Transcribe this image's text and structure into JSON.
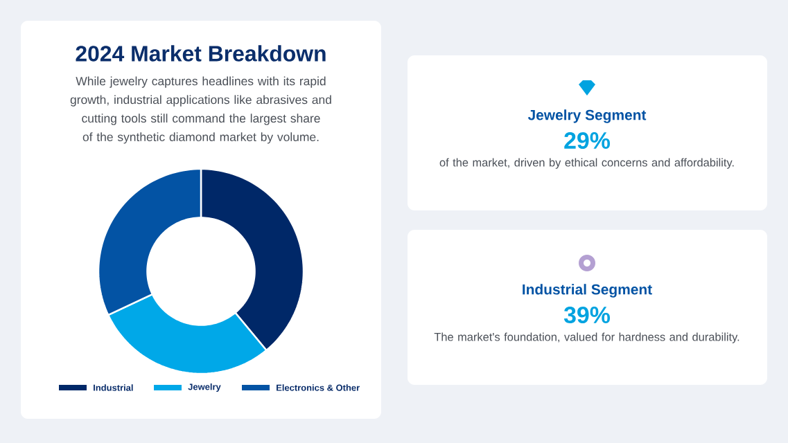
{
  "chart_data": [
    {
      "type": "donut",
      "title": "2024 Market Breakdown",
      "subtitle": "While jewelry captures headlines with its rapid growth, industrial applications like abrasives and cutting tools still command the largest share of the synthetic diamond market by volume.",
      "categories": [
        "Industrial",
        "Jewelry",
        "Electronics & Other"
      ],
      "values": [
        39,
        29,
        32
      ],
      "colors": [
        "#002868",
        "#00a8e8",
        "#0353a4"
      ],
      "legend": "bottom"
    },
    {
      "type": "other",
      "annotations": [
        "Jewelry Segment",
        "29%",
        "of the market, driven by ethical concerns and affordability.",
        "Industrial Segment",
        "39%",
        "The market's foundation, valued for hardness and durability."
      ]
    }
  ]
}
